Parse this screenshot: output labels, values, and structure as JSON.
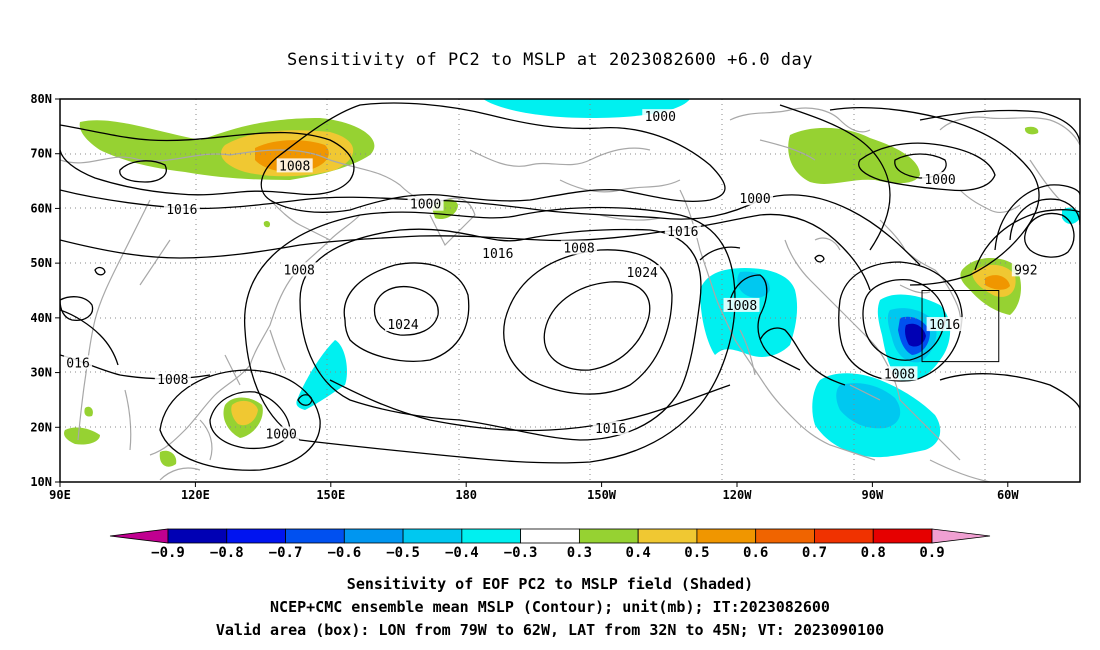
{
  "title": "Sensitivity of PC2 to MSLP at 2023082600 +6.0 day",
  "lat_ticks": [
    "80N",
    "70N",
    "60N",
    "50N",
    "40N",
    "30N",
    "20N",
    "10N"
  ],
  "lon_ticks": [
    "90E",
    "120E",
    "150E",
    "180",
    "150W",
    "120W",
    "90W",
    "60W"
  ],
  "contour_labels": [
    {
      "text": "1000",
      "lon": 223,
      "lat": 76.5
    },
    {
      "text": "1008",
      "lon": 142,
      "lat": 67.5
    },
    {
      "text": "1016",
      "lon": 117,
      "lat": 59.5
    },
    {
      "text": "1000",
      "lon": 171,
      "lat": 60.5
    },
    {
      "text": "1008",
      "lon": 143,
      "lat": 48.5
    },
    {
      "text": "1016",
      "lon": 187,
      "lat": 51.5
    },
    {
      "text": "1008",
      "lon": 205,
      "lat": 52.5
    },
    {
      "text": "1016",
      "lon": 228,
      "lat": 55.5
    },
    {
      "text": "1000",
      "lon": 244,
      "lat": 61.5
    },
    {
      "text": "1024",
      "lon": 219,
      "lat": 48.0
    },
    {
      "text": "1024",
      "lon": 166,
      "lat": 38.5
    },
    {
      "text": "1008",
      "lon": 241,
      "lat": 42.0
    },
    {
      "text": "1016",
      "lon": 286,
      "lat": 38.5
    },
    {
      "text": "1008",
      "lon": 276,
      "lat": 29.5
    },
    {
      "text": "1000",
      "lon": 285,
      "lat": 65.0
    },
    {
      "text": "992",
      "lon": 304,
      "lat": 48.5
    },
    {
      "text": "016",
      "lon": 94,
      "lat": 31.5
    },
    {
      "text": "1008",
      "lon": 115,
      "lat": 28.5
    },
    {
      "text": "1000",
      "lon": 139,
      "lat": 18.5
    },
    {
      "text": "1016",
      "lon": 212,
      "lat": 19.5
    }
  ],
  "colorbar": {
    "labels": [
      "−0.9",
      "−0.8",
      "−0.7",
      "−0.6",
      "−0.5",
      "−0.4",
      "−0.3",
      "0.3",
      "0.4",
      "0.5",
      "0.6",
      "0.7",
      "0.8",
      "0.9"
    ],
    "colors": [
      "#c00090",
      "#0000b4",
      "#0014f0",
      "#0050f0",
      "#0096f0",
      "#00c8f0",
      "#00f0f0",
      "#ffffff",
      "#96d232",
      "#f0c832",
      "#f09600",
      "#f06400",
      "#f03200",
      "#e60000",
      "#f0a0d2"
    ]
  },
  "shading": {
    "neg_outer": "#00f0f0",
    "neg_mid": "#00c8f0",
    "neg_deep": "#0050f0",
    "neg_core": "#0000b4",
    "pos_weak": "#96d232",
    "pos_mid": "#f0c832",
    "pos_strong": "#f09600"
  },
  "valid_box": {
    "lon_west": 281,
    "lon_east": 298,
    "lat_south": 32,
    "lat_north": 45
  },
  "caption_line1": "Sensitivity of EOF PC2 to MSLP field (Shaded)",
  "caption_line2": "NCEP+CMC ensemble mean MSLP (Contour); unit(mb); IT:2023082600",
  "caption_line3": "Valid area (box): LON from 79W to 62W, LAT from 32N to 45N; VT: 2023090100"
}
